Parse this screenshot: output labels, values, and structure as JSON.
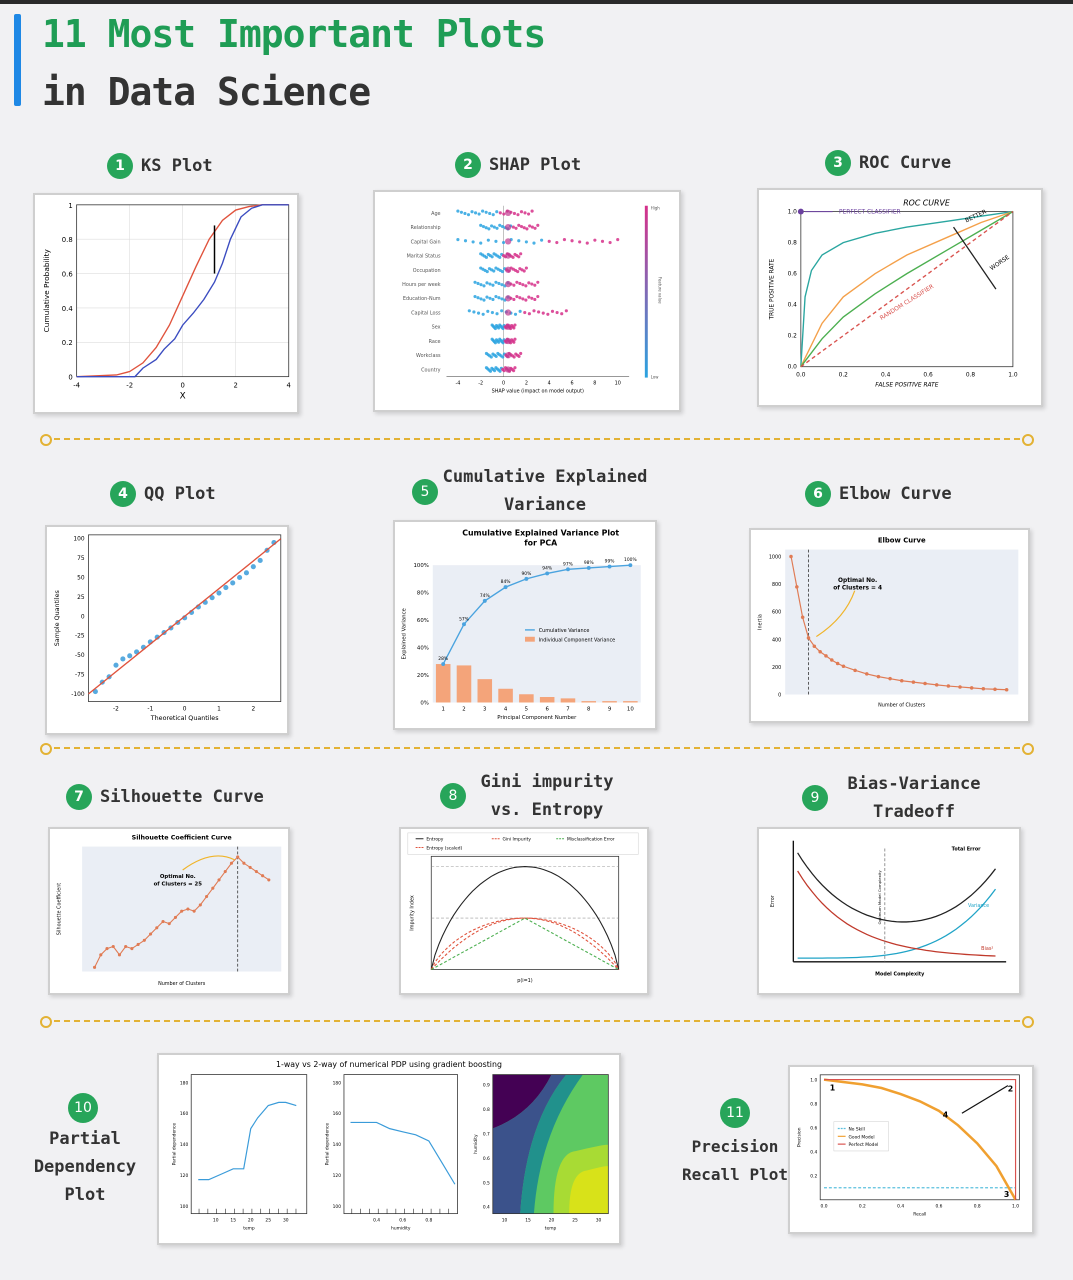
{
  "header": {
    "line1": "11 Most Important Plots",
    "line2": "in Data Science"
  },
  "labels": [
    {
      "num": "1",
      "text": "KS Plot"
    },
    {
      "num": "2",
      "text": "SHAP Plot"
    },
    {
      "num": "3",
      "text": "ROC Curve"
    },
    {
      "num": "4",
      "text": "QQ Plot"
    },
    {
      "num": "5",
      "line1": "Cumulative Explained",
      "line2": "Variance"
    },
    {
      "num": "6",
      "text": "Elbow Curve"
    },
    {
      "num": "7",
      "text": "Silhouette Curve"
    },
    {
      "num": "8",
      "line1": "Gini impurity",
      "line2": "vs. Entropy"
    },
    {
      "num": "9",
      "line1": "Bias-Variance",
      "line2": "Tradeoff"
    },
    {
      "num": "10",
      "line1": "Partial",
      "line2": "Dependency",
      "line3": "Plot"
    },
    {
      "num": "11",
      "line1": "Precision",
      "line2": "Recall Plot"
    }
  ],
  "colors": {
    "accent": "#1e88e5",
    "green": "#27a55a",
    "separator": "#e3b234"
  },
  "chart_data": [
    {
      "id": "ks",
      "type": "line",
      "xlabel": "X",
      "ylabel": "Cumulative Probability",
      "xlim": [
        -4,
        4
      ],
      "ylim": [
        0,
        1
      ],
      "xticks": [
        "-4",
        "-2",
        "0",
        "2",
        "4"
      ],
      "yticks": [
        "0",
        "0.2",
        "0.4",
        "0.6",
        "0.8",
        "1"
      ],
      "series": [
        {
          "color": "#e0533d",
          "x": [
            -4,
            -2.5,
            -2,
            -1.5,
            -1,
            -0.5,
            0,
            0.5,
            1,
            1.5,
            2,
            2.5,
            3,
            4
          ],
          "y": [
            0,
            0.01,
            0.03,
            0.08,
            0.17,
            0.3,
            0.47,
            0.64,
            0.8,
            0.91,
            0.97,
            0.99,
            1,
            1
          ]
        },
        {
          "color": "#3b4cc0",
          "x": [
            -4,
            -1.8,
            -1.5,
            -1,
            -0.7,
            -0.3,
            0,
            0.4,
            0.8,
            1.2,
            1.5,
            1.8,
            2.2,
            2.6,
            3,
            4
          ],
          "y": [
            0,
            0,
            0.05,
            0.1,
            0.16,
            0.22,
            0.3,
            0.37,
            0.45,
            0.55,
            0.66,
            0.8,
            0.93,
            0.98,
            1,
            1
          ]
        }
      ]
    },
    {
      "id": "shap",
      "type": "scatter",
      "xlabel": "SHAP value (impact on model output)",
      "colorbar": [
        "High",
        "Feature value",
        "Low"
      ],
      "features": [
        "Age",
        "Relationship",
        "Capital Gain",
        "Marital Status",
        "Occupation",
        "Hours per week",
        "Education-Num",
        "Capital Loss",
        "Sex",
        "Race",
        "Workclass",
        "Country"
      ],
      "spread": [
        [
          -4,
          2.5
        ],
        [
          -2,
          3
        ],
        [
          -4,
          10
        ],
        [
          -2,
          1.5
        ],
        [
          -2,
          2
        ],
        [
          -2.5,
          3
        ],
        [
          -2.5,
          3
        ],
        [
          -3,
          5.5
        ],
        [
          -1,
          1
        ],
        [
          -1,
          1
        ],
        [
          -1.5,
          1.5
        ],
        [
          -1.5,
          1
        ]
      ],
      "xticks": [
        "-4",
        "-2",
        "0",
        "2",
        "4",
        "6",
        "8",
        "10"
      ]
    },
    {
      "id": "roc",
      "type": "line",
      "title": "ROC CURVE",
      "xlabel": "FALSE POSITIVE RATE",
      "ylabel": "TRUE POSITIVE RATE",
      "xlim": [
        0,
        1
      ],
      "ylim": [
        0,
        1
      ],
      "xticks": [
        "0.0",
        "0.2",
        "0.4",
        "0.6",
        "0.8",
        "1.0"
      ],
      "yticks": [
        "0.0",
        "0.2",
        "0.4",
        "0.6",
        "0.8",
        "1.0"
      ],
      "annotations": [
        "PERFECT CLASSIFIER",
        "BETTER",
        "WORSE",
        "RANDOM CLASSIFIER"
      ],
      "series": [
        {
          "color": "#2aa6a0",
          "x": [
            0,
            0.02,
            0.05,
            0.1,
            0.2,
            0.35,
            0.5,
            0.7,
            0.85,
            1
          ],
          "y": [
            0,
            0.45,
            0.62,
            0.72,
            0.8,
            0.86,
            0.9,
            0.94,
            0.97,
            1
          ]
        },
        {
          "color": "#f4a04a",
          "x": [
            0,
            0.1,
            0.2,
            0.35,
            0.5,
            0.7,
            0.85,
            1
          ],
          "y": [
            0,
            0.28,
            0.45,
            0.6,
            0.72,
            0.84,
            0.93,
            1
          ]
        },
        {
          "color": "#4caf50",
          "x": [
            0,
            0.1,
            0.2,
            0.35,
            0.5,
            0.7,
            0.85,
            1
          ],
          "y": [
            0,
            0.18,
            0.32,
            0.47,
            0.6,
            0.76,
            0.88,
            1
          ]
        },
        {
          "color": "#d9534f",
          "dash": true,
          "x": [
            0,
            1
          ],
          "y": [
            0,
            1
          ]
        }
      ]
    },
    {
      "id": "qq",
      "type": "scatter",
      "xlabel": "Theoretical Quantiles",
      "ylabel": "Sample Quantiles",
      "xlim": [
        -2.8,
        2.8
      ],
      "ylim": [
        -110,
        105
      ],
      "xticks": [
        "-2",
        "-1",
        "0",
        "1",
        "2"
      ],
      "yticks": [
        "100",
        "75",
        "50",
        "25",
        "0",
        "-25",
        "-50",
        "-75",
        "-100"
      ],
      "line": {
        "color": "#e0533d",
        "x": [
          -2.8,
          2.8
        ],
        "y": [
          -100,
          100
        ]
      },
      "points_x": [
        -2.6,
        -2.4,
        -2.2,
        -2.0,
        -1.8,
        -1.6,
        -1.4,
        -1.2,
        -1.0,
        -0.8,
        -0.6,
        -0.4,
        -0.2,
        0,
        0.2,
        0.4,
        0.6,
        0.8,
        1.0,
        1.2,
        1.4,
        1.6,
        1.8,
        2.0,
        2.2,
        2.4,
        2.6
      ],
      "points_y": [
        -97,
        -85,
        -78,
        -63,
        -55,
        -51,
        -46,
        -40,
        -33,
        -27,
        -21,
        -15,
        -8,
        -2,
        5,
        12,
        18,
        24,
        30,
        37,
        43,
        50,
        56,
        64,
        72,
        85,
        95
      ]
    },
    {
      "id": "cev",
      "type": "bar",
      "title": "Cumulative Explained Variance Plot",
      "subtitle": "for PCA",
      "xlabel": "Principal Component Number",
      "ylabel": "Explained Variance",
      "categories": [
        "1",
        "2",
        "3",
        "4",
        "5",
        "6",
        "7",
        "8",
        "9",
        "10"
      ],
      "ylim": [
        0,
        100
      ],
      "yticks": [
        "0%",
        "20%",
        "40%",
        "60%",
        "80%",
        "100%"
      ],
      "legend": [
        "Cumulative Variance",
        "Individual Component Variance"
      ],
      "series": [
        {
          "name": "Cumulative Variance",
          "color": "#4aa3df",
          "values": [
            28,
            57,
            74,
            84,
            90,
            94,
            97,
            98,
            99,
            100
          ]
        },
        {
          "name": "Individual Component Variance",
          "color": "#f4a47a",
          "values": [
            28,
            27,
            17,
            10,
            6,
            4,
            3,
            1,
            1,
            1
          ]
        }
      ],
      "point_labels": [
        "28%",
        "57%",
        "74%",
        "84%",
        "90%",
        "94%",
        "97%",
        "98%",
        "99%",
        "100%"
      ]
    },
    {
      "id": "elbow",
      "type": "line",
      "title": "Elbow Curve",
      "xlabel": "Number of Clusters",
      "ylabel": "Inertia",
      "annotation": "Optimal No. of Clusters = 4",
      "xlim": [
        0,
        40
      ],
      "ylim": [
        0,
        1050
      ],
      "yticks": [
        "1000",
        "800",
        "600",
        "400",
        "200",
        "0"
      ],
      "marker_x": 4,
      "x": [
        1,
        2,
        3,
        4,
        5,
        6,
        7,
        8,
        9,
        10,
        12,
        14,
        16,
        18,
        20,
        22,
        24,
        26,
        28,
        30,
        32,
        34,
        36,
        38
      ],
      "y": [
        1000,
        780,
        560,
        410,
        350,
        310,
        280,
        250,
        225,
        205,
        175,
        150,
        130,
        115,
        100,
        90,
        80,
        70,
        62,
        55,
        48,
        42,
        38,
        35
      ]
    },
    {
      "id": "silhouette",
      "type": "line",
      "title": "Silhouette Coefficient Curve",
      "xlabel": "Number of Clusters",
      "ylabel": "Silhouette Coefficient",
      "annotation": "Optimal No. of Clusters = 25",
      "xlim": [
        0,
        32
      ],
      "ylim": [
        0.2,
        0.8
      ],
      "marker_x": 25,
      "x": [
        2,
        3,
        4,
        5,
        6,
        7,
        8,
        9,
        10,
        11,
        12,
        13,
        14,
        15,
        16,
        17,
        18,
        19,
        20,
        21,
        22,
        23,
        24,
        25,
        26,
        27,
        28,
        29,
        30
      ],
      "y": [
        0.22,
        0.28,
        0.31,
        0.32,
        0.28,
        0.32,
        0.31,
        0.33,
        0.35,
        0.38,
        0.41,
        0.44,
        0.43,
        0.46,
        0.49,
        0.5,
        0.49,
        0.52,
        0.56,
        0.6,
        0.64,
        0.68,
        0.72,
        0.75,
        0.72,
        0.7,
        0.68,
        0.66,
        0.64
      ]
    },
    {
      "id": "gini",
      "type": "line",
      "xlabel": "p(i=1)",
      "ylabel": "Impurity Index",
      "xlim": [
        0,
        1
      ],
      "ylim": [
        0,
        1.1
      ],
      "legend": [
        "Entropy",
        "Entropy (scaled)",
        "Gini Impurity",
        "Misclassification Error"
      ],
      "series": [
        {
          "name": "Entropy",
          "color": "#222",
          "fn": "entropy"
        },
        {
          "name": "Entropy (scaled)",
          "color": "#e0533d",
          "dash": true,
          "fn": "entropy_scaled"
        },
        {
          "name": "Gini Impurity",
          "color": "#e0533d",
          "dash": true,
          "fn": "gini"
        },
        {
          "name": "Misclassification Error",
          "color": "#4caf50",
          "dash": true,
          "fn": "misclass"
        }
      ]
    },
    {
      "id": "bias",
      "type": "line",
      "xlabel": "Model Complexity",
      "ylabel": "Error",
      "vline_label": "Optimum Model Complexity",
      "series": [
        {
          "name": "Total Error",
          "color": "#222"
        },
        {
          "name": "Variance",
          "color": "#20a4c7"
        },
        {
          "name": "Bias²",
          "color": "#c0392b"
        }
      ]
    },
    {
      "id": "pdp",
      "type": "line",
      "title": "1-way vs 2-way of numerical PDP using gradient boosting",
      "panels": [
        {
          "xlabel": "temp",
          "ylabel": "Partial dependence",
          "xticks": [
            "10",
            "15",
            "20",
            "25",
            "30"
          ],
          "yticks": [
            "180",
            "160",
            "140",
            "120",
            "100"
          ],
          "x": [
            5,
            8,
            12,
            15,
            18,
            20,
            22,
            25,
            28,
            30,
            33
          ],
          "y": [
            117,
            117,
            121,
            124,
            124,
            150,
            157,
            165,
            167,
            167,
            165
          ]
        },
        {
          "xlabel": "humidity",
          "ylabel": "Partial dependence",
          "xticks": [
            "0.4",
            "0.6",
            "0.8"
          ],
          "yticks": [
            "180",
            "160",
            "140",
            "120",
            "100"
          ],
          "x": [
            0.2,
            0.3,
            0.4,
            0.5,
            0.6,
            0.7,
            0.8,
            0.9,
            1.0
          ],
          "y": [
            154,
            154,
            154,
            150,
            148,
            146,
            142,
            128,
            114
          ]
        },
        {
          "xlabel": "temp",
          "ylabel": "humidity",
          "xticks": [
            "10",
            "15",
            "20",
            "25",
            "30"
          ],
          "yticks": [
            "0.9",
            "0.8",
            "0.7",
            "0.6",
            "0.5",
            "0.4"
          ]
        }
      ]
    },
    {
      "id": "pr",
      "type": "line",
      "xlabel": "Recall",
      "ylabel": "Precision",
      "xlim": [
        0,
        1
      ],
      "ylim": [
        0,
        1
      ],
      "xticks": [
        "0.0",
        "0.2",
        "0.4",
        "0.6",
        "0.8",
        "1.0"
      ],
      "yticks": [
        "1.0",
        "0.8",
        "0.6",
        "0.4",
        "0.2"
      ],
      "legend": [
        "No Skill",
        "Good Model",
        "Perfect Model"
      ],
      "point_labels": [
        "1",
        "2",
        "3",
        "4"
      ],
      "series": [
        {
          "name": "No Skill",
          "color": "#5bc0de",
          "dash": true,
          "x": [
            0,
            1
          ],
          "y": [
            0.1,
            0.1
          ]
        },
        {
          "name": "Good Model",
          "color": "#f0a030",
          "x": [
            0,
            0.1,
            0.2,
            0.3,
            0.4,
            0.5,
            0.6,
            0.7,
            0.8,
            0.9,
            1.0
          ],
          "y": [
            1,
            0.98,
            0.96,
            0.93,
            0.88,
            0.82,
            0.74,
            0.62,
            0.47,
            0.28,
            0.0
          ]
        },
        {
          "name": "Perfect Model",
          "color": "#d9534f",
          "x": [
            0,
            1,
            1
          ],
          "y": [
            1,
            1,
            0
          ]
        }
      ]
    }
  ]
}
